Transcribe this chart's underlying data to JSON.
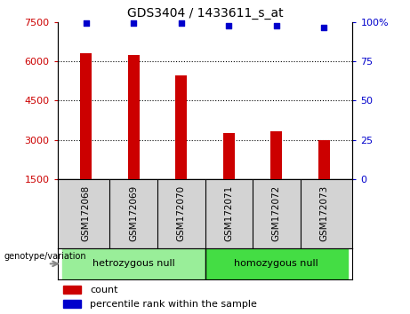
{
  "title": "GDS3404 / 1433611_s_at",
  "samples": [
    "GSM172068",
    "GSM172069",
    "GSM172070",
    "GSM172071",
    "GSM172072",
    "GSM172073"
  ],
  "counts": [
    6300,
    6250,
    5450,
    3250,
    3320,
    2980
  ],
  "percentile_ranks": [
    99.5,
    99.5,
    99.5,
    97.5,
    97.5,
    96.5
  ],
  "ylim_left": [
    1500,
    7500
  ],
  "ylim_right": [
    0,
    100
  ],
  "yticks_left": [
    1500,
    3000,
    4500,
    6000,
    7500
  ],
  "yticks_right": [
    0,
    25,
    50,
    75,
    100
  ],
  "ytick_labels_left": [
    "1500",
    "3000",
    "4500",
    "6000",
    "7500"
  ],
  "ytick_labels_right": [
    "0",
    "25",
    "50",
    "75",
    "100%"
  ],
  "grid_lines": [
    3000,
    4500,
    6000
  ],
  "bar_color": "#cc0000",
  "dot_color": "#0000cc",
  "group1_label": "hetrozygous null",
  "group2_label": "homozygous null",
  "group1_indices": [
    0,
    1,
    2
  ],
  "group2_indices": [
    3,
    4,
    5
  ],
  "group1_color": "#99ee99",
  "group2_color": "#44dd44",
  "xlabel_group": "genotype/variation",
  "legend_count_label": "count",
  "legend_percentile_label": "percentile rank within the sample",
  "tick_label_color_left": "#cc0000",
  "tick_label_color_right": "#0000cc",
  "bar_bottom": 1500,
  "tick_area_color": "#d3d3d3",
  "bar_width": 0.25
}
